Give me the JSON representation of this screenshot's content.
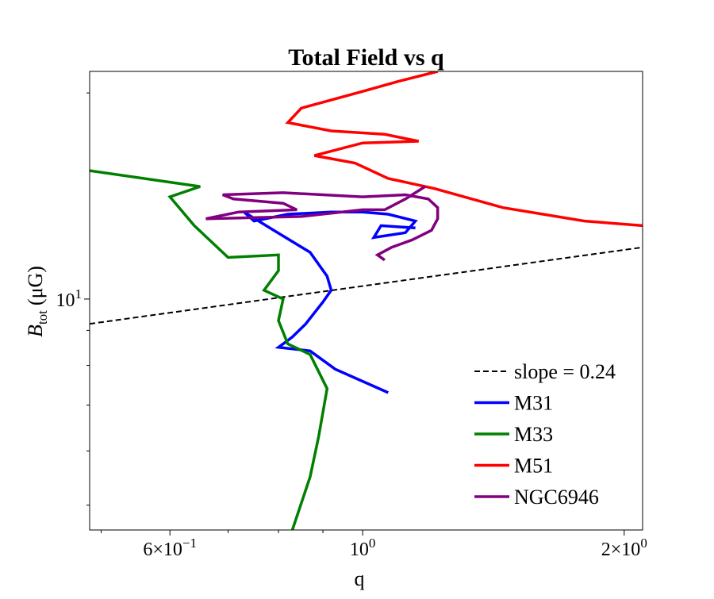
{
  "chart_data": {
    "type": "line",
    "title": "Total Field vs q",
    "xlabel": "q",
    "ylabel_main": "B",
    "ylabel_sub": "tot",
    "ylabel_unit": "(μG)",
    "xscale": "log",
    "yscale": "log",
    "xlim": [
      0.485,
      2.1
    ],
    "ylim": [
      4.6,
      21.5
    ],
    "x_ticks": [
      {
        "value": 0.6,
        "mantissa": "6",
        "exponent": "−1"
      },
      {
        "value": 1.0,
        "mantissa": "",
        "exponent": "0"
      },
      {
        "value": 2.0,
        "mantissa": "2",
        "exponent": "0"
      }
    ],
    "y_ticks": [
      {
        "value": 10,
        "mantissa": "",
        "exponent": "1"
      }
    ],
    "tick_base": "10",
    "tick_times": "×",
    "legend_position": "lower right",
    "grid": false,
    "reference_line": {
      "name": "slope = 0.24",
      "style": "dashed",
      "color": "#000000",
      "x": [
        0.485,
        2.1
      ],
      "y": [
        9.2,
        11.9
      ]
    },
    "series": [
      {
        "name": "M31",
        "color": "#0000ff",
        "x": [
          1.07,
          0.93,
          0.87,
          0.8,
          0.83,
          0.86,
          0.9,
          0.92,
          0.91,
          0.87,
          0.79,
          0.73,
          0.75,
          0.82,
          0.92,
          1.0,
          1.07,
          1.15,
          1.12,
          1.03,
          1.05,
          1.15
        ],
        "y": [
          7.3,
          7.9,
          8.4,
          8.5,
          8.8,
          9.2,
          9.9,
          10.3,
          10.8,
          11.7,
          12.6,
          13.4,
          13.0,
          13.3,
          13.4,
          13.4,
          13.3,
          13.0,
          12.5,
          12.3,
          12.8,
          12.7
        ]
      },
      {
        "name": "M33",
        "color": "#008000",
        "x": [
          0.83,
          0.87,
          0.89,
          0.91,
          0.87,
          0.82,
          0.8,
          0.81,
          0.77,
          0.8,
          0.8,
          0.7,
          0.64,
          0.6,
          0.65,
          0.485
        ],
        "y": [
          4.6,
          5.5,
          6.3,
          7.4,
          8.3,
          8.6,
          9.3,
          10.0,
          10.3,
          11.0,
          11.6,
          11.5,
          12.8,
          14.1,
          14.6,
          15.4
        ]
      },
      {
        "name": "M51",
        "color": "#ff0000",
        "x": [
          1.22,
          1.1,
          1.0,
          0.85,
          0.82,
          0.92,
          1.06,
          1.16,
          1.0,
          0.88,
          0.98,
          1.07,
          1.21,
          1.45,
          1.8,
          2.1
        ],
        "y": [
          21.5,
          20.8,
          20.1,
          19.0,
          18.1,
          17.6,
          17.4,
          17.0,
          16.9,
          16.2,
          15.8,
          15.0,
          14.5,
          13.6,
          13.0,
          12.8
        ]
      },
      {
        "name": "NGC6946",
        "color": "#800080",
        "x": [
          1.06,
          1.04,
          1.08,
          1.14,
          1.2,
          1.22,
          1.22,
          1.19,
          1.12,
          1.0,
          0.81,
          0.69,
          0.71,
          0.81,
          0.84,
          0.72,
          0.66,
          0.85,
          1.0,
          1.06,
          1.12,
          1.18
        ],
        "y": [
          11.4,
          11.6,
          11.9,
          12.2,
          12.6,
          13.1,
          13.6,
          14.0,
          14.2,
          14.1,
          14.3,
          14.2,
          14.0,
          13.8,
          13.5,
          13.4,
          13.1,
          13.2,
          13.5,
          13.5,
          14.0,
          14.6
        ]
      }
    ]
  }
}
